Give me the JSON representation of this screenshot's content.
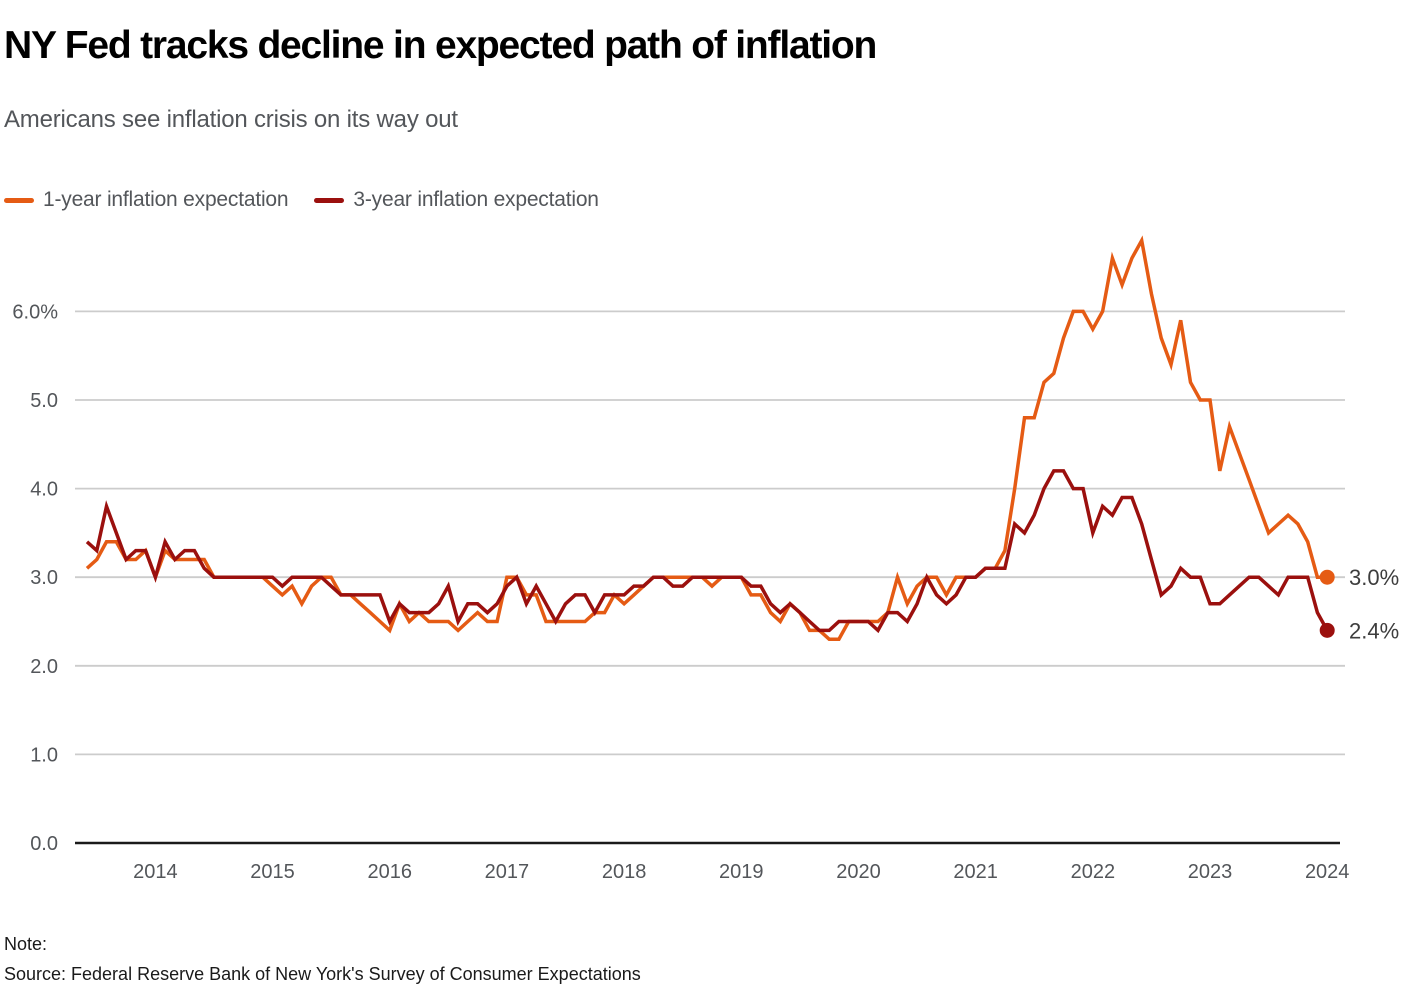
{
  "header": {
    "title": "NY Fed tracks decline in expected path of inflation",
    "subtitle": "Americans see inflation crisis on its way out"
  },
  "legend": {
    "items": [
      {
        "label": "1-year inflation expectation",
        "color": "#E55B14"
      },
      {
        "label": "3-year inflation expectation",
        "color": "#9B100E"
      }
    ]
  },
  "footer": {
    "note_label": "Note:",
    "source": "Source: Federal Reserve Bank of New York's Survey of Consumer Expectations"
  },
  "chart_data": {
    "type": "line",
    "title": "NY Fed tracks decline in expected path of inflation",
    "subtitle": "Americans see inflation crisis on its way out",
    "x_start": "2013-06",
    "x_end": "2024-01",
    "frequency": "monthly",
    "grid": "horizontal",
    "legend_position": "top",
    "ylim": [
      0,
      6.9
    ],
    "y_ticks": [
      {
        "value": 0,
        "label": "0.0"
      },
      {
        "value": 1,
        "label": "1.0"
      },
      {
        "value": 2,
        "label": "2.0"
      },
      {
        "value": 3,
        "label": "3.0"
      },
      {
        "value": 4,
        "label": "4.0"
      },
      {
        "value": 5,
        "label": "5.0"
      },
      {
        "value": 6,
        "label": "6.0%"
      }
    ],
    "x_tick_labels": [
      "2014",
      "2015",
      "2016",
      "2017",
      "2018",
      "2019",
      "2020",
      "2021",
      "2022",
      "2023",
      "2024"
    ],
    "series": [
      {
        "name": "1-year inflation expectation",
        "color": "#E55B14",
        "end_label": "3.0%",
        "last_value": 3.0,
        "values": [
          3.1,
          3.2,
          3.4,
          3.4,
          3.2,
          3.2,
          3.3,
          3.0,
          3.3,
          3.2,
          3.2,
          3.2,
          3.2,
          3.0,
          3.0,
          3.0,
          3.0,
          3.0,
          3.0,
          2.9,
          2.8,
          2.9,
          2.7,
          2.9,
          3.0,
          3.0,
          2.8,
          2.8,
          2.7,
          2.6,
          2.5,
          2.4,
          2.7,
          2.5,
          2.6,
          2.5,
          2.5,
          2.5,
          2.4,
          2.5,
          2.6,
          2.5,
          2.5,
          3.0,
          3.0,
          2.8,
          2.8,
          2.5,
          2.5,
          2.5,
          2.5,
          2.5,
          2.6,
          2.6,
          2.8,
          2.7,
          2.8,
          2.9,
          3.0,
          3.0,
          3.0,
          3.0,
          3.0,
          3.0,
          2.9,
          3.0,
          3.0,
          3.0,
          2.8,
          2.8,
          2.6,
          2.5,
          2.7,
          2.6,
          2.4,
          2.4,
          2.3,
          2.3,
          2.5,
          2.5,
          2.5,
          2.5,
          2.6,
          3.0,
          2.7,
          2.9,
          3.0,
          3.0,
          2.8,
          3.0,
          3.0,
          3.0,
          3.1,
          3.1,
          3.3,
          4.0,
          4.8,
          4.8,
          5.2,
          5.3,
          5.7,
          6.0,
          6.0,
          5.8,
          6.0,
          6.6,
          6.3,
          6.6,
          6.8,
          6.2,
          5.7,
          5.4,
          5.9,
          5.2,
          5.0,
          5.0,
          4.2,
          4.7,
          4.4,
          4.1,
          3.8,
          3.5,
          3.6,
          3.7,
          3.6,
          3.4,
          3.0,
          3.0
        ]
      },
      {
        "name": "3-year inflation expectation",
        "color": "#9B100E",
        "end_label": "2.4%",
        "last_value": 2.4,
        "values": [
          3.4,
          3.3,
          3.8,
          3.5,
          3.2,
          3.3,
          3.3,
          3.0,
          3.4,
          3.2,
          3.3,
          3.3,
          3.1,
          3.0,
          3.0,
          3.0,
          3.0,
          3.0,
          3.0,
          3.0,
          2.9,
          3.0,
          3.0,
          3.0,
          3.0,
          2.9,
          2.8,
          2.8,
          2.8,
          2.8,
          2.8,
          2.5,
          2.7,
          2.6,
          2.6,
          2.6,
          2.7,
          2.9,
          2.5,
          2.7,
          2.7,
          2.6,
          2.7,
          2.9,
          3.0,
          2.7,
          2.9,
          2.7,
          2.5,
          2.7,
          2.8,
          2.8,
          2.6,
          2.8,
          2.8,
          2.8,
          2.9,
          2.9,
          3.0,
          3.0,
          2.9,
          2.9,
          3.0,
          3.0,
          3.0,
          3.0,
          3.0,
          3.0,
          2.9,
          2.9,
          2.7,
          2.6,
          2.7,
          2.6,
          2.5,
          2.4,
          2.4,
          2.5,
          2.5,
          2.5,
          2.5,
          2.4,
          2.6,
          2.6,
          2.5,
          2.7,
          3.0,
          2.8,
          2.7,
          2.8,
          3.0,
          3.0,
          3.1,
          3.1,
          3.1,
          3.6,
          3.5,
          3.7,
          4.0,
          4.2,
          4.2,
          4.0,
          4.0,
          3.5,
          3.8,
          3.7,
          3.9,
          3.9,
          3.6,
          3.2,
          2.8,
          2.9,
          3.1,
          3.0,
          3.0,
          2.7,
          2.7,
          2.8,
          2.9,
          3.0,
          3.0,
          2.9,
          2.8,
          3.0,
          3.0,
          3.0,
          2.6,
          2.4
        ]
      }
    ]
  }
}
